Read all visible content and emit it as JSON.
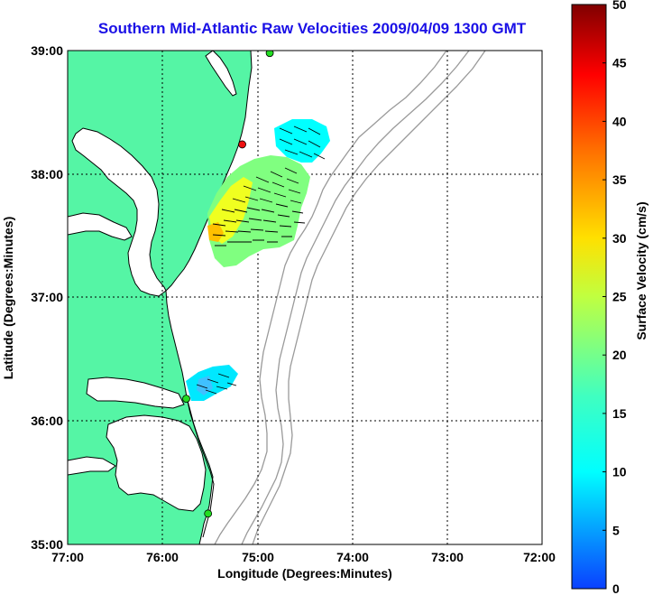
{
  "title": "Southern Mid-Atlantic Raw Velocities 2009/04/09 1300 GMT",
  "xlabel": "Longitude (Degrees:Minutes)",
  "ylabel": "Latitude (Degrees:Minutes)",
  "x_ticks": [
    "77:00",
    "76:00",
    "75:00",
    "74:00",
    "73:00",
    "72:00"
  ],
  "y_ticks": [
    "39:00",
    "38:00",
    "37:00",
    "36:00",
    "35:00"
  ],
  "colorbar": {
    "label": "Surface Velocity (cm/s)",
    "ticks": [
      "0",
      "5",
      "10",
      "15",
      "20",
      "25",
      "30",
      "35",
      "40",
      "45",
      "50"
    ]
  },
  "colors": {
    "land": "#55f5a5",
    "ocean": "#ffffff",
    "bathymetry": "#9a9a9a",
    "title": "#1a10e6",
    "site_active": "#22dd22",
    "site_inactive": "#ee1111"
  },
  "map_data": {
    "lon_range": [
      -77,
      -72
    ],
    "lat_range": [
      35,
      39
    ],
    "grid": true,
    "sites": [
      {
        "lon": -74.87,
        "lat": 38.98,
        "status": "active"
      },
      {
        "lon": -75.16,
        "lat": 38.24,
        "status": "inactive"
      },
      {
        "lon": -75.75,
        "lat": 36.18,
        "status": "active"
      },
      {
        "lon": -75.52,
        "lat": 35.25,
        "status": "active"
      }
    ]
  }
}
